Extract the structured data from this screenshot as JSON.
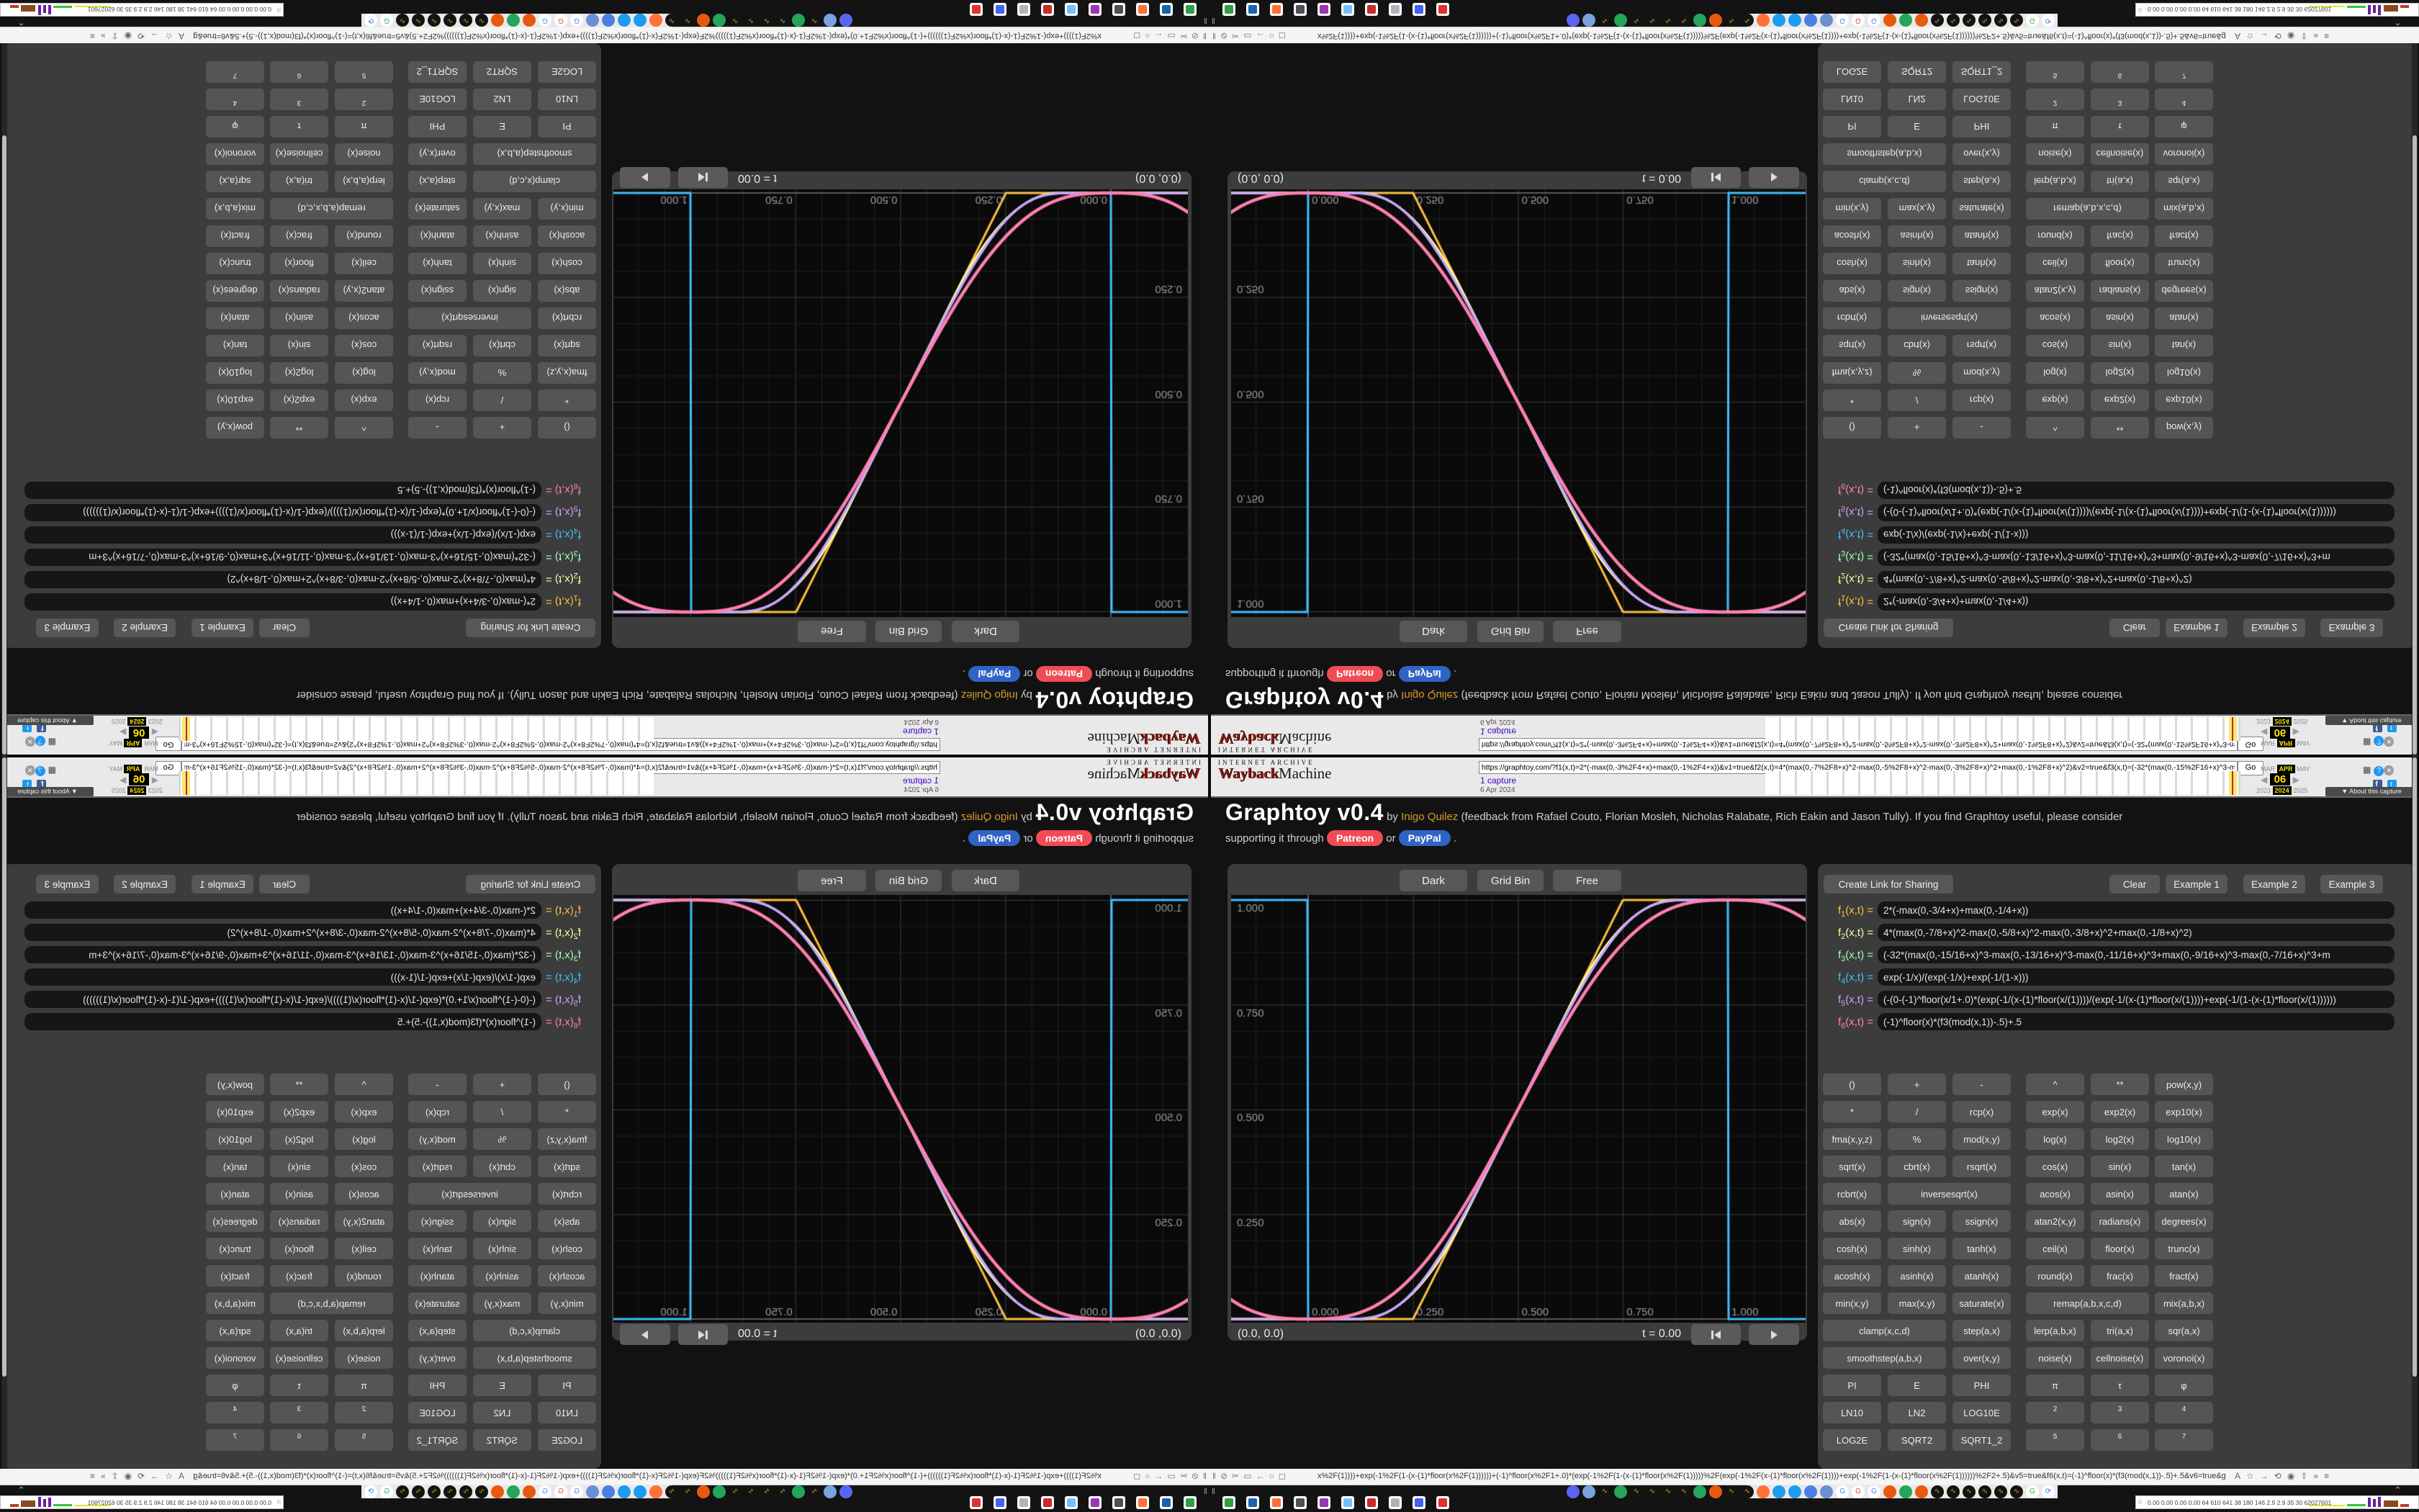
{
  "banner": {
    "archive_label": "INTERNET ARCHIVE",
    "wayback": "Wayback",
    "machine": "Machine",
    "url": "https://graphtoy.com/?f1(x,t)=2*(-max(0,-3%2F4+x)+max(0,-1%2F4+x))&v1=true&f2(x,t)=4*(max(0,-7%2F8+x)^2-max(0,-5%2F8+x)^2-max(0,-3%2F8+x)^2+max(0,-1%2F8+x)^2)&v2=true&f3(x,t)=(-32*(max(0,-15%2F16+x)^3-max(0,-13%2F16+x)^3-max(0,-11%2F16+x)",
    "go": "Go",
    "captures": "1 capture",
    "capture_date": "6 Apr 2024",
    "months": [
      "MAR",
      "APR",
      "MAY"
    ],
    "day": "06",
    "years": [
      "2023",
      "2024",
      "2025"
    ],
    "about": "▼ About this capture"
  },
  "page": {
    "header": {
      "title": "Graphtoy v0.4",
      "by": "by",
      "author": "Inigo Quilez",
      "credits": "(feedback from Rafael Couto, Florian Mosleh, Nicholas Ralabate, Rich Eakin and Jason Tully). If you find Graphtoy useful, please consider",
      "support_prefix": "supporting it through",
      "patreon": "Patreon",
      "or_label": "or",
      "paypal": "PayPal",
      "period": "."
    },
    "canvas_panel": {
      "theme_button": "Dark",
      "grid_button": "Grid Bin",
      "range_button": "Free",
      "coords": "(0.0, 0.0)",
      "time": "t = 0.00"
    },
    "axis": {
      "y": [
        "1.000",
        "0.750",
        "0.500",
        "0.250"
      ],
      "x": [
        "0.000",
        "0.250",
        "0.500",
        "0.750",
        "1.000"
      ]
    },
    "right_panel": {
      "actions": {
        "share": "Create Link for Sharing",
        "clear": "Clear",
        "example1": "Example 1",
        "example2": "Example 2",
        "example3": "Example 3"
      },
      "formulas": [
        {
          "n": 1,
          "color": "#ffc040",
          "expr": "2*(-max(0,-3/4+x)+max(0,-1/4+x))"
        },
        {
          "n": 2,
          "color": "#ffffa0",
          "expr": "4*(max(0,-7/8+x)^2-max(0,-5/8+x)^2-max(0,-3/8+x)^2+max(0,-1/8+x)^2)"
        },
        {
          "n": 3,
          "color": "#a0ffc0",
          "expr": "(-32*(max(0,-15/16+x)^3-max(0,-13/16+x)^3-max(0,-11/16+x)^3+max(0,-9/16+x)^3-max(0,-7/16+x)^3+m"
        },
        {
          "n": 4,
          "color": "#40c0ff",
          "expr": "exp(-1/x)/(exp(-1/x)+exp(-1/(1-x)))"
        },
        {
          "n": 5,
          "color": "#d0a0ff",
          "expr": "(-(0-(-1)^floor(x/1+.0)*(exp(-1/(x-(1)*floor(x/(1))))/(exp(-1/(x-(1)*floor(x/(1))))+exp(-1/(1-(x-(1)*floor(x/(1))))))"
        },
        {
          "n": 6,
          "color": "#ff80b0",
          "expr": "(-1)^floor(x)*(f3(mod(x,1))-.5)+.5"
        }
      ],
      "grid": {
        "groups": [
          [
            [
              "()",
              "+",
              "-",
              "^",
              "**",
              "pow(x,y)"
            ],
            [
              "*",
              "/",
              "rcp(x)",
              "exp(x)",
              "exp2(x)",
              "exp10(x)"
            ],
            [
              "fma(x,y,z)",
              "%",
              "mod(x,y)",
              "log(x)",
              "log2(x)",
              "log10(x)"
            ]
          ],
          [
            [
              "sqrt(x)",
              "cbrt(x)",
              "rsqrt(x)",
              "cos(x)",
              "sin(x)",
              "tan(x)"
            ],
            [
              "rcbrt(x)",
              {
                "t": "inversesqrt(x)",
                "w": 2
              },
              "acos(x)",
              "asin(x)",
              "atan(x)"
            ],
            [
              "abs(x)",
              "sign(x)",
              "ssign(x)",
              "atan2(x,y)",
              "radians(x)",
              "degrees(x)"
            ]
          ],
          [
            [
              "cosh(x)",
              "sinh(x)",
              "tanh(x)",
              "ceil(x)",
              "floor(x)",
              "trunc(x)"
            ],
            [
              "acosh(x)",
              "asinh(x)",
              "atanh(x)",
              "round(x)",
              "frac(x)",
              "fract(x)"
            ]
          ],
          [
            [
              "min(x,y)",
              "max(x,y)",
              "saturate(x)",
              {
                "t": "remap(a,b,x,c,d)",
                "w": 2
              },
              "mix(a,b,x)"
            ],
            [
              {
                "t": "clamp(x,c,d)",
                "w": 2
              },
              "step(a,x)",
              "lerp(a,b,x)",
              "tri(a,x)",
              "sqr(a,x)"
            ],
            [
              {
                "t": "smoothstep(a,b,x)",
                "w": 2
              },
              "over(x,y)",
              "noise(x)",
              "cellnoise(x)",
              "voronoi(x)"
            ]
          ],
          [
            [
              "PI",
              "E",
              "PHI",
              "π",
              "τ",
              "φ"
            ],
            [
              "LN10",
              "LN2",
              "LOG10E",
              {
                "t": "2",
                "sup": true
              },
              {
                "t": "3",
                "sup": true
              },
              {
                "t": "4",
                "sup": true
              }
            ],
            [
              "LOG2E",
              "SQRT2",
              "SQRT1_2",
              {
                "t": "5",
                "sup": true
              },
              {
                "t": "6",
                "sup": true
              },
              {
                "t": "7",
                "sup": true
              }
            ]
          ]
        ]
      }
    }
  },
  "bottombar": {
    "url": "x%2F(1))))+exp(-1%2F(1-(x-(1)*floor(x%2F(1))))))+(-1)^floor(x%2F1+.0)*(exp(-1%2F(1-(x-(1)*floor(x%2F(1)))))%2F(exp(-1%2F(x-(1)*floor(x%2F(1))))+exp(-1%2F(1-(x-(1)*floor(x%2F(1))))))%2F2+.5)&v5=true&f6(x,t)=(-1)^floor(x)*(f3(mod(x,1))-.5)+.5&v6=true&grid=2&coords=0.5,0.5,0.66693548387096774",
    "stats": "0.00 0.00 0.00 0.00  64  610  641  38  180  146  2.9  2.9  35  30  62027601",
    "left_icons": [
      {
        "name": "pause-icon",
        "g": "‖"
      },
      {
        "name": "blocked-globe-icon",
        "g": "⊘"
      },
      {
        "name": "scissors-icon",
        "g": "✂"
      },
      {
        "name": "frame-icon",
        "g": "▭"
      },
      {
        "name": "back-arrow-icon",
        "g": "←"
      },
      {
        "name": "circle-icon",
        "g": "○"
      },
      {
        "name": "reader-icon",
        "g": "◻"
      }
    ],
    "right_icons": [
      {
        "name": "translate-icon",
        "g": "A"
      },
      {
        "name": "bookmark-star-icon",
        "g": "☆"
      },
      {
        "name": "forward-arrow-icon",
        "g": "→"
      },
      {
        "name": "reload-icon",
        "g": "⟲"
      },
      {
        "name": "extensions-icon",
        "g": "◉"
      },
      {
        "name": "share-icon",
        "g": "⇪"
      },
      {
        "name": "overflow-icon",
        "g": "»"
      },
      {
        "name": "menu-icon",
        "g": "≡"
      }
    ],
    "favicons": [
      {
        "bg": "#5865F2"
      },
      {
        "bg": "#7ba2e0"
      },
      {
        "bg": "#131313",
        "ch": "∿",
        "cc": "#c9a227"
      },
      {
        "bg": "#23a55a"
      },
      {
        "bg": "#131313",
        "ch": "∿",
        "cc": "#c9a227"
      },
      {
        "bg": "#131313",
        "ch": "∿",
        "cc": "#c9a227"
      },
      {
        "bg": "#131313",
        "ch": "∿",
        "cc": "#c9a227"
      },
      {
        "bg": "#131313",
        "ch": "∿",
        "cc": "#c9a227"
      },
      {
        "bg": "#23a55a"
      },
      {
        "bg": "#e8590c"
      },
      {
        "bg": "#131313",
        "ch": "∿",
        "cc": "#c9a227"
      },
      {
        "bg": "#131313",
        "ch": "∿",
        "cc": "#c9a227"
      },
      {
        "bg": "#ff7139"
      },
      {
        "bg": "#1d9bf0"
      },
      {
        "bg": "#1d9bf0"
      },
      {
        "bg": "#4c7fe0"
      },
      {
        "bg": "#6b8fd4"
      },
      {
        "bg": "#ffffff",
        "ch": "G",
        "cc": "#4285F4"
      },
      {
        "bg": "#ffffff",
        "ch": "G",
        "cc": "#ea4335"
      },
      {
        "bg": "#ffffff",
        "ch": "G",
        "cc": "#4285F4"
      },
      {
        "bg": "#e8590c"
      },
      {
        "bg": "#23a55a"
      },
      {
        "bg": "#e8590c"
      },
      {
        "bg": "#131313",
        "ch": "∿",
        "cc": "#c9a227"
      },
      {
        "bg": "#131313",
        "ch": "∿",
        "cc": "#c9a227"
      },
      {
        "bg": "#131313",
        "ch": "∿",
        "cc": "#c9a227"
      },
      {
        "bg": "#131313",
        "ch": "∿",
        "cc": "#c9a227"
      },
      {
        "bg": "#131313",
        "ch": "∿",
        "cc": "#c9a227"
      },
      {
        "bg": "#131313",
        "ch": "∿",
        "cc": "#c9a227"
      },
      {
        "bg": "#ffffff",
        "ch": "G",
        "cc": "#34a853"
      },
      {
        "bg": "#ffffff",
        "ch": "⟳",
        "cc": "#2d6ff0"
      }
    ],
    "plates": [
      "#2f9e44",
      "#1864ab",
      "#ff7139",
      "#495057",
      "#9c36b5",
      "#74c0fc",
      "#c92a2a",
      "#adb5bd",
      "#4263eb",
      "#e03131"
    ]
  },
  "chart_data": {
    "type": "line",
    "title": "",
    "xlabel": "",
    "ylabel": "",
    "xlim": [
      -0.1835,
      1.185
    ],
    "ylim": [
      -0.012,
      1.012
    ],
    "grid": "binary (1/16 minor, 1/4 major)",
    "x_ticks": [
      0.0,
      0.25,
      0.5,
      0.75,
      1.0
    ],
    "y_ticks": [
      0.25,
      0.5,
      0.75,
      1.0
    ],
    "series": [
      {
        "name": "f1",
        "color": "#ffc040",
        "formula": "2*(-max(0,-3/4+x)+max(0,-1/4+x))",
        "shape": "piecewise-linear ramp: 0 for x<0.25, slope 2 to 1 at x=0.75, then 1"
      },
      {
        "name": "f2",
        "color": "#ffffa0",
        "formula": "4*(max(0,-7/8+x)^2-max(0,-5/8+x)^2-max(0,-3/8+x)^2+max(0,-1/8+x)^2)",
        "shape": "C1 piecewise-quadratic smoothstep 0->1 on [0,1]"
      },
      {
        "name": "f3",
        "color": "#a0ffc0",
        "formula": "(-32*(max(0,-15/16+x)^3-max(0,-13/16+x)^3-...)",
        "shape": "C2 piecewise-cubic smoothstep 0->1 on [0,1]"
      },
      {
        "name": "f4",
        "color": "#40c0ff",
        "formula": "exp(-1/x)/(exp(-1/x)+exp(-1/(1-x)))",
        "shape": "smooth S on (0,1); equals 1 for x<0 and 0 for x>1 (vertical jumps at x=0 and x=1)"
      },
      {
        "name": "f5",
        "color": "#d0a0ff",
        "formula": "(-(0-(-1)^floor(x/1+.0)*(exp(-1/(x-(1)*floor(x/(1))))/...)",
        "shape": "periodic smooth S bundle overlapping f4 core"
      },
      {
        "name": "f6",
        "color": "#ff80b0",
        "formula": "(-1)^floor(x)*(f3(mod(x,1))-.5)+.5",
        "shape": "thick pink S; mirrored extension outside [0,1]"
      }
    ],
    "time": 0.0,
    "cursor": [
      0.0,
      0.0
    ]
  }
}
